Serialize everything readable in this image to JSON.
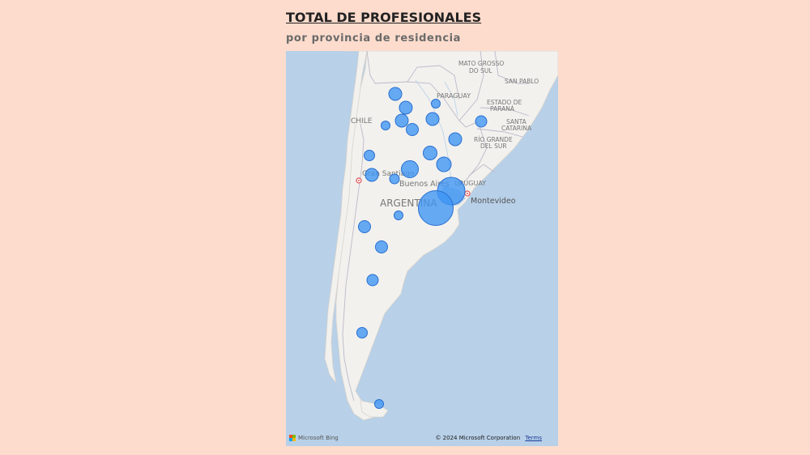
{
  "title": "TOTAL DE PROFESIONALES",
  "subtitle": "por provincia de residencia",
  "map": {
    "labels": {
      "mato_grosso": "MATO GROSSO",
      "do_sul": "DO SUL",
      "san_pablo": "SAN PABLO",
      "paraguay": "PARAGUAY",
      "estado_de": "ESTADO DE",
      "parana": "PARANÁ",
      "chile": "CHILE",
      "santa": "SANTA",
      "catarina": "CATARINA",
      "rio_grande": "RÍO GRANDE",
      "rio_do_sul": "DEL SUR",
      "gran_santiago": "Gran Santiago",
      "buenos_aires": "Buenos Aires",
      "uruguay": "URUGUAY",
      "argentina": "ARGENTINA",
      "montevideo": "Montevideo"
    },
    "attribution": "© 2024 Microsoft Corporation",
    "terms": "Terms",
    "provider": "Microsoft Bing",
    "bubble_color": "#3d95f5"
  }
}
